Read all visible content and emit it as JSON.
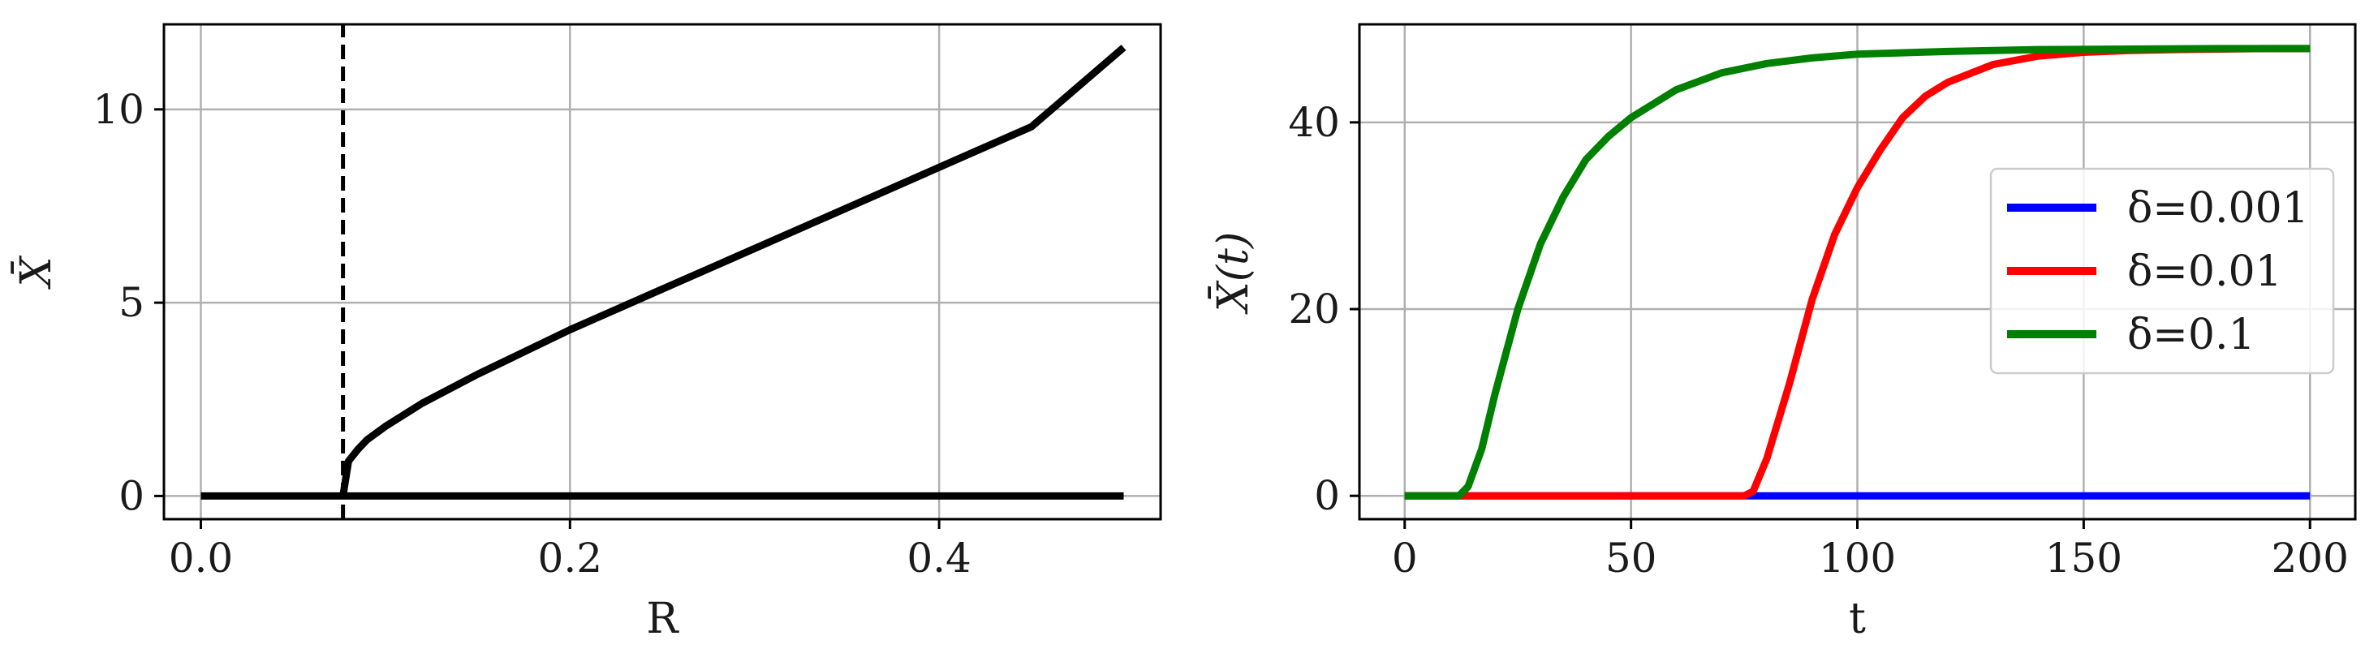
{
  "chart_data": [
    {
      "type": "line",
      "title": "",
      "xlabel": "R",
      "ylabel": "X̄",
      "xlim": [
        -0.02,
        0.52
      ],
      "ylim": [
        -0.6,
        12.2
      ],
      "xticks": [
        0.0,
        0.2,
        0.4
      ],
      "xtick_labels": [
        "0.0",
        "0.2",
        "0.4"
      ],
      "yticks": [
        0,
        5,
        10
      ],
      "ytick_labels": [
        "0",
        "5",
        "10"
      ],
      "grid": true,
      "critical_R": 0.077,
      "series": [
        {
          "color": "#000000",
          "style": "solid",
          "x": [
            0.0,
            0.5
          ],
          "y": [
            0.0,
            0.0
          ]
        },
        {
          "color": "#000000",
          "style": "solid",
          "x": [
            0.077,
            0.08,
            0.085,
            0.09,
            0.1,
            0.12,
            0.15,
            0.2,
            0.25,
            0.3,
            0.35,
            0.4,
            0.45,
            0.5
          ],
          "y": [
            0.0,
            0.9,
            1.2,
            1.45,
            1.8,
            2.4,
            3.15,
            4.3,
            5.35,
            6.4,
            7.45,
            8.5,
            9.55,
            11.6
          ]
        },
        {
          "color": "#000000",
          "style": "dashed",
          "x": [
            0.077,
            0.077
          ],
          "y": [
            -0.6,
            12.2
          ]
        }
      ]
    },
    {
      "type": "line",
      "title": "",
      "xlabel": "t",
      "ylabel": "X̄(t)",
      "xlim": [
        -10,
        210
      ],
      "ylim": [
        -2.5,
        50.5
      ],
      "xticks": [
        0,
        50,
        100,
        150,
        200
      ],
      "xtick_labels": [
        "0",
        "50",
        "100",
        "150",
        "200"
      ],
      "yticks": [
        0,
        20,
        40
      ],
      "ytick_labels": [
        "0",
        "20",
        "40"
      ],
      "grid": true,
      "legend_position": "center-right",
      "series": [
        {
          "name": "δ=0.001",
          "color": "#0000ff",
          "x": [
            0,
            200
          ],
          "y": [
            0,
            0
          ]
        },
        {
          "name": "δ=0.01",
          "color": "#ff0000",
          "x": [
            0,
            75,
            77,
            80,
            85,
            90,
            95,
            100,
            105,
            110,
            115,
            120,
            130,
            140,
            150,
            160,
            170,
            180,
            190,
            200
          ],
          "y": [
            0,
            0,
            0.5,
            4,
            12,
            21,
            28,
            33,
            37,
            40.5,
            42.8,
            44.3,
            46.2,
            47.1,
            47.5,
            47.7,
            47.8,
            47.85,
            47.9,
            47.9
          ]
        },
        {
          "name": "δ=0.1",
          "color": "#008000",
          "x": [
            0,
            12,
            14,
            17,
            20,
            25,
            30,
            35,
            40,
            45,
            50,
            60,
            70,
            80,
            90,
            100,
            120,
            140,
            160,
            180,
            200
          ],
          "y": [
            0,
            0,
            1,
            5,
            11,
            20,
            27,
            32,
            36,
            38.5,
            40.5,
            43.5,
            45.3,
            46.3,
            46.9,
            47.3,
            47.6,
            47.8,
            47.85,
            47.9,
            47.9
          ]
        }
      ]
    }
  ]
}
